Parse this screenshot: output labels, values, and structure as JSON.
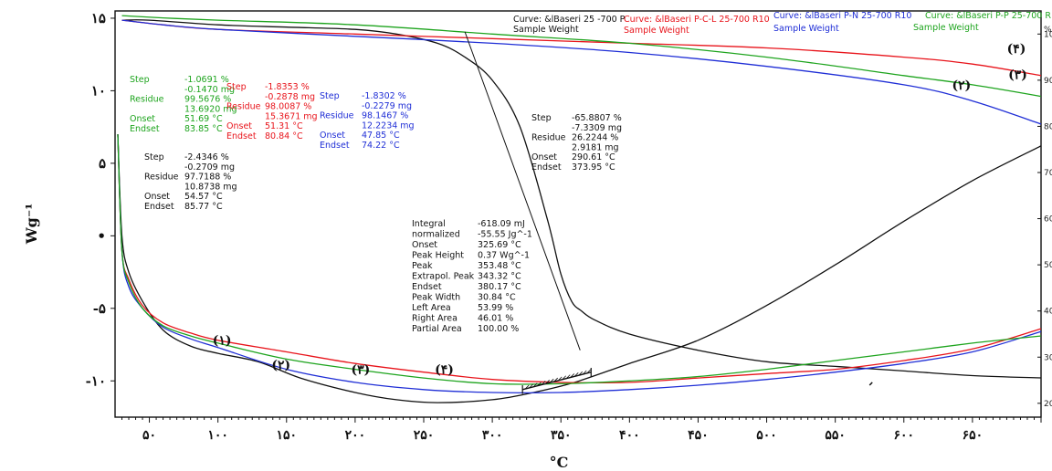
{
  "chart_data": {
    "type": "line",
    "xlabel": "°C",
    "ylabel": "Wg⁻¹",
    "xlim": [
      25,
      700
    ],
    "ylim_left": [
      -12.5,
      15.5
    ],
    "ylim_right": [
      17,
      105
    ],
    "right_unit": "%",
    "x_ticks": [
      {
        "v": 50,
        "t": "۵۰"
      },
      {
        "v": 100,
        "t": "۱۰۰"
      },
      {
        "v": 150,
        "t": "۱۵۰"
      },
      {
        "v": 200,
        "t": "۲۰۰"
      },
      {
        "v": 250,
        "t": "۲۵۰"
      },
      {
        "v": 300,
        "t": "۳۰۰"
      },
      {
        "v": 350,
        "t": "۳۵۰"
      },
      {
        "v": 400,
        "t": "۴۰۰"
      },
      {
        "v": 450,
        "t": "۴۵۰"
      },
      {
        "v": 500,
        "t": "۵۰۰"
      },
      {
        "v": 550,
        "t": "۵۵۰"
      },
      {
        "v": 600,
        "t": "۶۰۰"
      },
      {
        "v": 650,
        "t": "۶۵۰"
      }
    ],
    "left_ticks": [
      {
        "v": 15,
        "t": "۱۵"
      },
      {
        "v": 10,
        "t": "۱۰"
      },
      {
        "v": 5,
        "t": "۵"
      },
      {
        "v": 0,
        "t": "•"
      },
      {
        "v": -5,
        "t": "-۵"
      },
      {
        "v": -10,
        "t": "-۱۰"
      }
    ],
    "right_ticks": [
      {
        "v": 100,
        "t": "100"
      },
      {
        "v": 90,
        "t": "90"
      },
      {
        "v": 80,
        "t": "80"
      },
      {
        "v": 70,
        "t": "70"
      },
      {
        "v": 60,
        "t": "60"
      },
      {
        "v": 50,
        "t": "50"
      },
      {
        "v": 40,
        "t": "40"
      },
      {
        "v": 30,
        "t": "30"
      },
      {
        "v": 20,
        "t": "20"
      }
    ],
    "series": [
      {
        "name": "Curve: &lBaseri 25 -700 P",
        "sub": "Sample Weight",
        "color": "#111111",
        "tg_pct": [
          [
            30,
            103
          ],
          [
            50,
            103
          ],
          [
            100,
            102
          ],
          [
            150,
            101.5
          ],
          [
            200,
            101
          ],
          [
            230,
            100
          ],
          [
            260,
            98
          ],
          [
            280,
            95
          ],
          [
            300,
            90
          ],
          [
            320,
            80
          ],
          [
            340,
            60
          ],
          [
            350,
            48
          ],
          [
            358,
            42
          ],
          [
            365,
            40
          ],
          [
            375,
            38
          ],
          [
            400,
            35
          ],
          [
            450,
            31.5
          ],
          [
            500,
            29
          ],
          [
            550,
            28
          ],
          [
            600,
            27
          ],
          [
            650,
            26
          ],
          [
            700,
            25.5
          ]
        ],
        "dsc_wg": [
          [
            27,
            7
          ],
          [
            30,
            0
          ],
          [
            35,
            -2.5
          ],
          [
            45,
            -4.5
          ],
          [
            60,
            -6.5
          ],
          [
            80,
            -7.6
          ],
          [
            100,
            -8.1
          ],
          [
            130,
            -8.7
          ],
          [
            160,
            -9.8
          ],
          [
            200,
            -10.8
          ],
          [
            230,
            -11.3
          ],
          [
            260,
            -11.5
          ],
          [
            300,
            -11.3
          ],
          [
            330,
            -10.8
          ],
          [
            360,
            -10.1
          ],
          [
            400,
            -8.8
          ],
          [
            450,
            -7.2
          ],
          [
            500,
            -4.8
          ],
          [
            550,
            -2
          ],
          [
            600,
            1
          ],
          [
            650,
            3.8
          ],
          [
            700,
            6.2
          ]
        ]
      },
      {
        "name": "Curve: &lBaseri P-C-L 25-700 R10",
        "sub": "Sample Weight",
        "color": "#e8141b",
        "tg_pct": [
          [
            30,
            103
          ],
          [
            60,
            102
          ],
          [
            100,
            101
          ],
          [
            200,
            100
          ],
          [
            300,
            99
          ],
          [
            400,
            98
          ],
          [
            500,
            97
          ],
          [
            600,
            95
          ],
          [
            650,
            93.5
          ],
          [
            700,
            91
          ]
        ],
        "dsc_wg": [
          [
            27,
            7
          ],
          [
            30,
            -1
          ],
          [
            35,
            -3
          ],
          [
            45,
            -4.8
          ],
          [
            60,
            -6
          ],
          [
            80,
            -6.7
          ],
          [
            100,
            -7.2
          ],
          [
            150,
            -8
          ],
          [
            200,
            -8.8
          ],
          [
            250,
            -9.4
          ],
          [
            300,
            -9.9
          ],
          [
            350,
            -10.1
          ],
          [
            400,
            -10.1
          ],
          [
            450,
            -9.8
          ],
          [
            500,
            -9.5
          ],
          [
            550,
            -9.2
          ],
          [
            600,
            -8.6
          ],
          [
            650,
            -7.8
          ],
          [
            700,
            -6.4
          ]
        ]
      },
      {
        "name": "Curve: &lBaseri P-N 25-700 R10",
        "sub": "Sample Weight",
        "color": "#1f2ed6",
        "tg_pct": [
          [
            30,
            103
          ],
          [
            60,
            102
          ],
          [
            100,
            101
          ],
          [
            200,
            99.5
          ],
          [
            300,
            98
          ],
          [
            400,
            96
          ],
          [
            500,
            93
          ],
          [
            600,
            89
          ],
          [
            650,
            85.5
          ],
          [
            700,
            80.5
          ]
        ],
        "dsc_wg": [
          [
            27,
            7
          ],
          [
            30,
            -1
          ],
          [
            35,
            -3.5
          ],
          [
            45,
            -5
          ],
          [
            60,
            -6.3
          ],
          [
            80,
            -7.1
          ],
          [
            100,
            -7.7
          ],
          [
            150,
            -9.2
          ],
          [
            200,
            -10.1
          ],
          [
            250,
            -10.6
          ],
          [
            300,
            -10.8
          ],
          [
            350,
            -10.8
          ],
          [
            400,
            -10.6
          ],
          [
            450,
            -10.3
          ],
          [
            500,
            -9.9
          ],
          [
            550,
            -9.4
          ],
          [
            600,
            -8.8
          ],
          [
            650,
            -8
          ],
          [
            700,
            -6.6
          ]
        ]
      },
      {
        "name": "Curve: &lBaseri P-P 25-700 R10",
        "sub": "Sample Weight",
        "color": "#1ea41e",
        "tg_pct": [
          [
            30,
            104
          ],
          [
            60,
            103.5
          ],
          [
            100,
            103
          ],
          [
            200,
            102
          ],
          [
            300,
            100
          ],
          [
            400,
            98
          ],
          [
            500,
            95
          ],
          [
            600,
            91
          ],
          [
            650,
            89
          ],
          [
            700,
            86.5
          ]
        ],
        "dsc_wg": [
          [
            27,
            7
          ],
          [
            30,
            -1
          ],
          [
            35,
            -3.2
          ],
          [
            45,
            -5
          ],
          [
            60,
            -6.2
          ],
          [
            80,
            -6.9
          ],
          [
            100,
            -7.4
          ],
          [
            150,
            -8.5
          ],
          [
            200,
            -9.2
          ],
          [
            250,
            -9.8
          ],
          [
            300,
            -10.2
          ],
          [
            350,
            -10.2
          ],
          [
            400,
            -10
          ],
          [
            450,
            -9.7
          ],
          [
            500,
            -9.2
          ],
          [
            550,
            -8.6
          ],
          [
            600,
            -8
          ],
          [
            650,
            -7.4
          ],
          [
            700,
            -6.9
          ]
        ]
      }
    ],
    "curve_labels": [
      {
        "t": "(۱)",
        "x": 103,
        "y": -7.5
      },
      {
        "t": "(۲)",
        "x": 146,
        "y": -9.2
      },
      {
        "t": "(۳)",
        "x": 204,
        "y": -9.5
      },
      {
        "t": "(۴)",
        "x": 265,
        "y": -9.5
      },
      {
        "t": "(۴)",
        "x": 682,
        "y": 12.6
      },
      {
        "t": "(۳)",
        "x": 683,
        "y": 10.8
      },
      {
        "t": "(۲)",
        "x": 642,
        "y": 10.1
      }
    ]
  },
  "legend_header": [
    {
      "curve": "Curve: &lBaseri 25 -700 P",
      "sub": "Sample Weight",
      "color": "#111111"
    },
    {
      "curve": "Curve: &lBaseri P-C-L 25-700 R10",
      "sub": "Sample Weight",
      "color": "#e8141b"
    },
    {
      "curve": "Curve: &lBaseri P-N 25-700 R10",
      "sub": "Sample Weight",
      "color": "#1f2ed6"
    },
    {
      "curve": "Curve: &lBaseri P-P 25-700 R10",
      "sub": "Sample Weight",
      "color": "#1ea41e"
    }
  ],
  "annotations": {
    "green": {
      "color": "#1ea41e",
      "lines": [
        [
          "Step",
          "-1.0691 %"
        ],
        [
          "",
          "-0.1470 mg"
        ],
        [
          "Residue",
          "99.5676 %"
        ],
        [
          "",
          "13.6920 mg"
        ],
        [
          "Onset",
          "51.69 °C"
        ],
        [
          "Endset",
          "83.85 °C"
        ]
      ]
    },
    "red": {
      "color": "#e8141b",
      "lines": [
        [
          "Step",
          "-1.8353 %"
        ],
        [
          "",
          "-0.2878 mg"
        ],
        [
          "Residue",
          "98.0087 %"
        ],
        [
          "",
          "15.3671 mg"
        ],
        [
          "Onset",
          "51.31 °C"
        ],
        [
          "Endset",
          "80.84 °C"
        ]
      ]
    },
    "blue": {
      "color": "#1f2ed6",
      "lines": [
        [
          "Step",
          "-1.8302 %"
        ],
        [
          "",
          "-0.2279 mg"
        ],
        [
          "Residue",
          "98.1467 %"
        ],
        [
          "",
          "12.2234 mg"
        ],
        [
          "Onset",
          "47.85 °C"
        ],
        [
          "Endset",
          "74.22 °C"
        ]
      ]
    },
    "black1": {
      "color": "#111111",
      "lines": [
        [
          "Step",
          "-2.4346 %"
        ],
        [
          "",
          "-0.2709 mg"
        ],
        [
          "Residue",
          "97.7188 %"
        ],
        [
          "",
          "10.8738 mg"
        ],
        [
          "Onset",
          "54.57 °C"
        ],
        [
          "Endset",
          "85.77 °C"
        ]
      ]
    },
    "black2": {
      "color": "#111111",
      "lines": [
        [
          "Step",
          "-65.8807 %"
        ],
        [
          "",
          "-7.3309 mg"
        ],
        [
          "Residue",
          "26.2244 %"
        ],
        [
          "",
          "2.9181 mg"
        ],
        [
          "Onset",
          "290.61 °C"
        ],
        [
          "Endset",
          "373.95 °C"
        ]
      ]
    },
    "integral": {
      "color": "#111111",
      "lines": [
        [
          "Integral",
          "-618.09 mJ"
        ],
        [
          "  normalized",
          "-55.55 Jg^-1"
        ],
        [
          "Onset",
          "325.69 °C"
        ],
        [
          "Peak Height",
          "0.37 Wg^-1"
        ],
        [
          "Peak",
          "353.48 °C"
        ],
        [
          "Extrapol. Peak",
          "343.32 °C"
        ],
        [
          "Endset",
          "380.17 °C"
        ],
        [
          "Peak Width",
          "30.84 °C"
        ],
        [
          "Left Area",
          "53.99 %"
        ],
        [
          "Right Area",
          "46.01 %"
        ],
        [
          "Partial Area",
          "100.00 %"
        ]
      ]
    }
  }
}
